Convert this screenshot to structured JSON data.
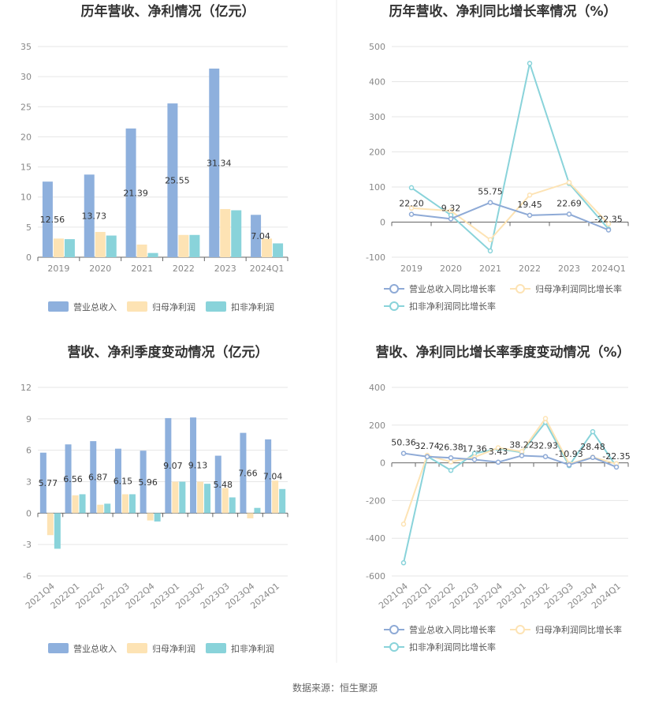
{
  "source": "数据来源：恒生聚源",
  "colors": {
    "revenue": "#8eb0dd",
    "parent_profit": "#fde3b4",
    "deducted_profit": "#89d3da",
    "revenue_line": "#8eaad6",
    "parent_line": "#fde3b4",
    "deducted_line": "#89d3da"
  },
  "chart_data": [
    {
      "id": "annual-amount",
      "type": "bar",
      "title": "历年营收、净利情况（亿元）",
      "categories": [
        "2019",
        "2020",
        "2021",
        "2022",
        "2023",
        "2024Q1"
      ],
      "ylim": [
        0,
        35
      ],
      "yticks": [
        0,
        5,
        10,
        15,
        20,
        25,
        30,
        35
      ],
      "series": [
        {
          "name": "营业总收入",
          "values": [
            12.56,
            13.73,
            21.39,
            25.55,
            31.34,
            7.04
          ]
        },
        {
          "name": "归母净利润",
          "values": [
            3.1,
            4.2,
            2.1,
            3.7,
            8.0,
            3.1
          ]
        },
        {
          "name": "扣非净利润",
          "values": [
            3.0,
            3.6,
            0.7,
            3.7,
            7.8,
            2.3
          ]
        }
      ],
      "data_labels": [
        "12.56",
        "13.73",
        "21.39",
        "25.55",
        "31.34",
        "7.04"
      ],
      "legend": "bottom",
      "grid": true
    },
    {
      "id": "annual-growth",
      "type": "line",
      "title": "历年营收、净利同比增长率情况（%）",
      "categories": [
        "2019",
        "2020",
        "2021",
        "2022",
        "2023",
        "2024Q1"
      ],
      "ylim": [
        -100,
        500
      ],
      "yticks": [
        -100,
        0,
        100,
        200,
        300,
        400,
        500
      ],
      "series": [
        {
          "name": "营业总收入同比增长率",
          "values": [
            22.2,
            9.32,
            55.75,
            19.45,
            22.69,
            -22.35
          ]
        },
        {
          "name": "归母净利润同比增长率",
          "values": [
            40,
            32,
            -50,
            77,
            113,
            -5
          ]
        },
        {
          "name": "扣非净利润同比增长率",
          "values": [
            98,
            20,
            -82,
            452,
            110,
            -20
          ]
        }
      ],
      "data_labels": [
        "22.20",
        "9.32",
        "55.75",
        "19.45",
        "22.69",
        "-22.35"
      ],
      "legend": "bottom",
      "grid": true
    },
    {
      "id": "quarterly-amount",
      "type": "bar",
      "title": "营收、净利季度变动情况（亿元）",
      "categories": [
        "2021Q4",
        "2022Q1",
        "2022Q2",
        "2022Q3",
        "2022Q4",
        "2023Q1",
        "2023Q2",
        "2023Q3",
        "2023Q4",
        "2024Q1"
      ],
      "ylim": [
        -6,
        12
      ],
      "yticks": [
        -6,
        -3,
        0,
        3,
        6,
        9,
        12
      ],
      "series": [
        {
          "name": "营业总收入",
          "values": [
            5.77,
            6.56,
            6.87,
            6.15,
            5.96,
            9.07,
            9.13,
            5.48,
            7.66,
            7.04
          ]
        },
        {
          "name": "归母净利润",
          "values": [
            -2.1,
            1.7,
            0.8,
            1.8,
            -0.7,
            3.0,
            3.0,
            2.4,
            -0.5,
            3.1
          ]
        },
        {
          "name": "扣非净利润",
          "values": [
            -3.4,
            1.8,
            0.9,
            1.8,
            -0.8,
            3.0,
            2.8,
            1.5,
            0.5,
            2.3
          ]
        }
      ],
      "data_labels": [
        "5.77",
        "6.56",
        "6.87",
        "6.15",
        "5.96",
        "9.07",
        "9.13",
        "5.48",
        "7.66",
        "7.04"
      ],
      "legend": "bottom",
      "grid": true
    },
    {
      "id": "quarterly-growth",
      "type": "line",
      "title": "营收、净利同比增长率季度变动情况（%）",
      "categories": [
        "2021Q4",
        "2022Q1",
        "2022Q2",
        "2022Q3",
        "2022Q4",
        "2023Q1",
        "2023Q2",
        "2023Q3",
        "2023Q4",
        "2024Q1"
      ],
      "ylim": [
        -600,
        400
      ],
      "yticks": [
        -600,
        -400,
        -200,
        0,
        200,
        400
      ],
      "series": [
        {
          "name": "营业总收入同比增长率",
          "values": [
            50.36,
            32.74,
            26.38,
            17.36,
            3.43,
            38.22,
            32.93,
            -10.93,
            28.48,
            -22.35
          ]
        },
        {
          "name": "归母净利润同比增长率",
          "values": [
            -325,
            40,
            5,
            30,
            80,
            60,
            235,
            -5,
            30,
            -5
          ]
        },
        {
          "name": "扣非净利润同比增长率",
          "values": [
            -530,
            35,
            -40,
            50,
            75,
            55,
            215,
            -15,
            165,
            -20
          ]
        }
      ],
      "data_labels": [
        "50.36",
        "32.74",
        "26.38",
        "17.36",
        "3.43",
        "38.22",
        "32.93",
        "-10.93",
        "28.48",
        "-22.35"
      ],
      "legend": "bottom",
      "grid": true
    }
  ]
}
